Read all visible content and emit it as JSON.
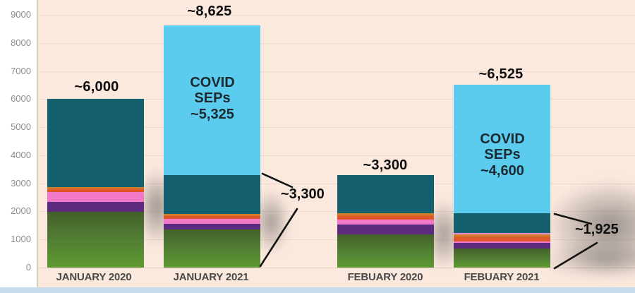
{
  "chart_data": {
    "type": "bar",
    "stacked": true,
    "title": "",
    "xlabel": "",
    "ylabel": "",
    "grid": true,
    "legend": "none",
    "categories": [
      "JANUARY 2020",
      "JANUARY 2021",
      "FEBUARY 2020",
      "FEBUARY 2021"
    ],
    "y_axis": {
      "min": 0,
      "max": 9000,
      "step": 1000,
      "tick_labels": [
        "0",
        "1000",
        "2000",
        "3000",
        "4000",
        "5000",
        "6000",
        "7000",
        "8000",
        "9000"
      ]
    },
    "series": [
      {
        "name": "green",
        "values": [
          1980,
          1350,
          1180,
          675
        ]
      },
      {
        "name": "purple",
        "values": [
          360,
          205,
          350,
          205
        ]
      },
      {
        "name": "pink",
        "values": [
          340,
          175,
          175,
          50
        ]
      },
      {
        "name": "orange",
        "values": [
          180,
          175,
          225,
          250
        ]
      },
      {
        "name": "pink-thin",
        "values": [
          0,
          0,
          0,
          50
        ]
      },
      {
        "name": "teal",
        "values": [
          3140,
          1395,
          1370,
          695
        ]
      },
      {
        "name": "covid-sep",
        "values": [
          0,
          5325,
          0,
          4600
        ]
      }
    ],
    "bar_totals": [
      "~6,000",
      "~8,625",
      "~3,300",
      "~6,525"
    ],
    "in_bar_labels": [
      {
        "bar": "JANUARY 2021",
        "lines": [
          "COVID",
          "SEPs",
          "~5,325"
        ]
      },
      {
        "bar": "FEBUARY 2021",
        "lines": [
          "COVID",
          "SEPs",
          "~4,600"
        ]
      }
    ],
    "callouts": [
      {
        "label": "~3,300",
        "refers_to": "JANUARY 2021 non-COVID portion"
      },
      {
        "label": "~1,925",
        "refers_to": "FEBUARY 2021 non-COVID portion"
      }
    ],
    "colors": {
      "plot_bg": "#fbe9de",
      "gridline": "#f0dacd",
      "green_top": "#44602a",
      "green_mid": "#538134",
      "green_bottom": "#5f9a31",
      "purple": "#5c2a7e",
      "pink": "#f279c7",
      "pink_thin": "#ef8fd3",
      "orange_top": "#cb8a2a",
      "orange_bottom": "#e0562a",
      "teal": "#15606f",
      "covid_blue": "#5bcbee",
      "annotation_text": "#0e0e0e",
      "bottom_strip": "#c6dcee"
    }
  }
}
